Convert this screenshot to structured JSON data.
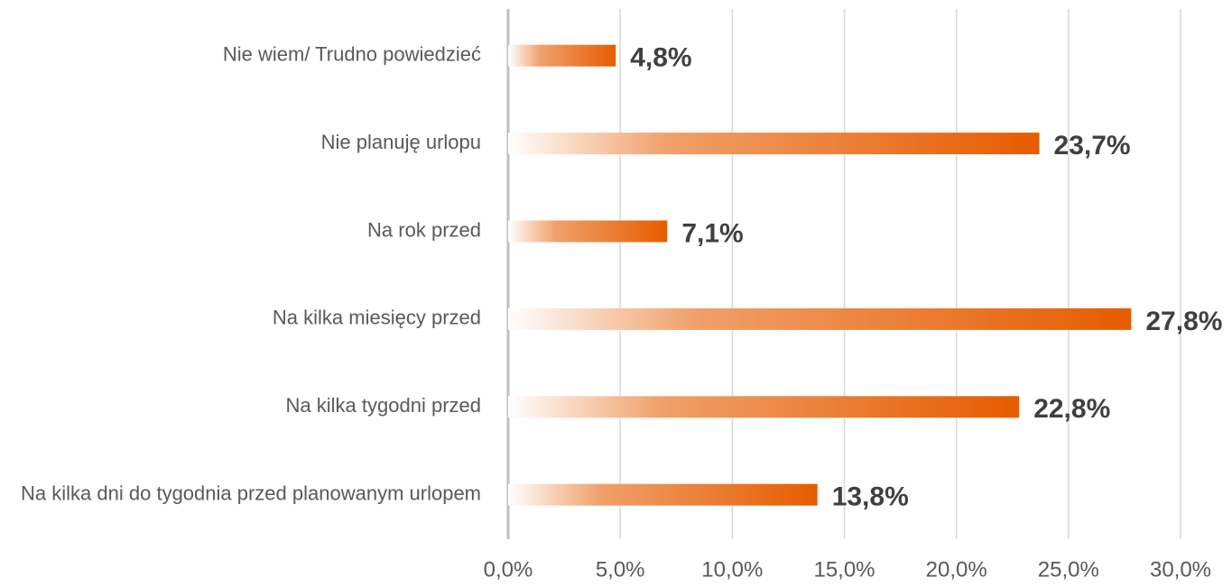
{
  "chart_data": {
    "type": "barh",
    "categories": [
      "Nie wiem/ Trudno powiedzieć",
      "Nie planuję urlopu",
      "Na rok przed",
      "Na kilka miesięcy przed",
      "Na kilka tygodni przed",
      "Na kilka dni do tygodnia przed planowanym urlopem"
    ],
    "values": [
      4.8,
      23.7,
      7.1,
      27.8,
      22.8,
      13.8
    ],
    "value_labels": [
      "4,8%",
      "23,7%",
      "7,1%",
      "27,8%",
      "22,8%",
      "13,8%"
    ],
    "color": "#e65c00",
    "xlim": [
      0,
      30
    ],
    "xticks": [
      {
        "value": 0,
        "label": "0,0%"
      },
      {
        "value": 5,
        "label": "5,0%"
      },
      {
        "value": 10,
        "label": "10,0%"
      },
      {
        "value": 15,
        "label": "15,0%"
      },
      {
        "value": 20,
        "label": "20,0%"
      },
      {
        "value": 25,
        "label": "25,0%"
      },
      {
        "value": 30,
        "label": "30,0%"
      }
    ],
    "grid": true
  }
}
